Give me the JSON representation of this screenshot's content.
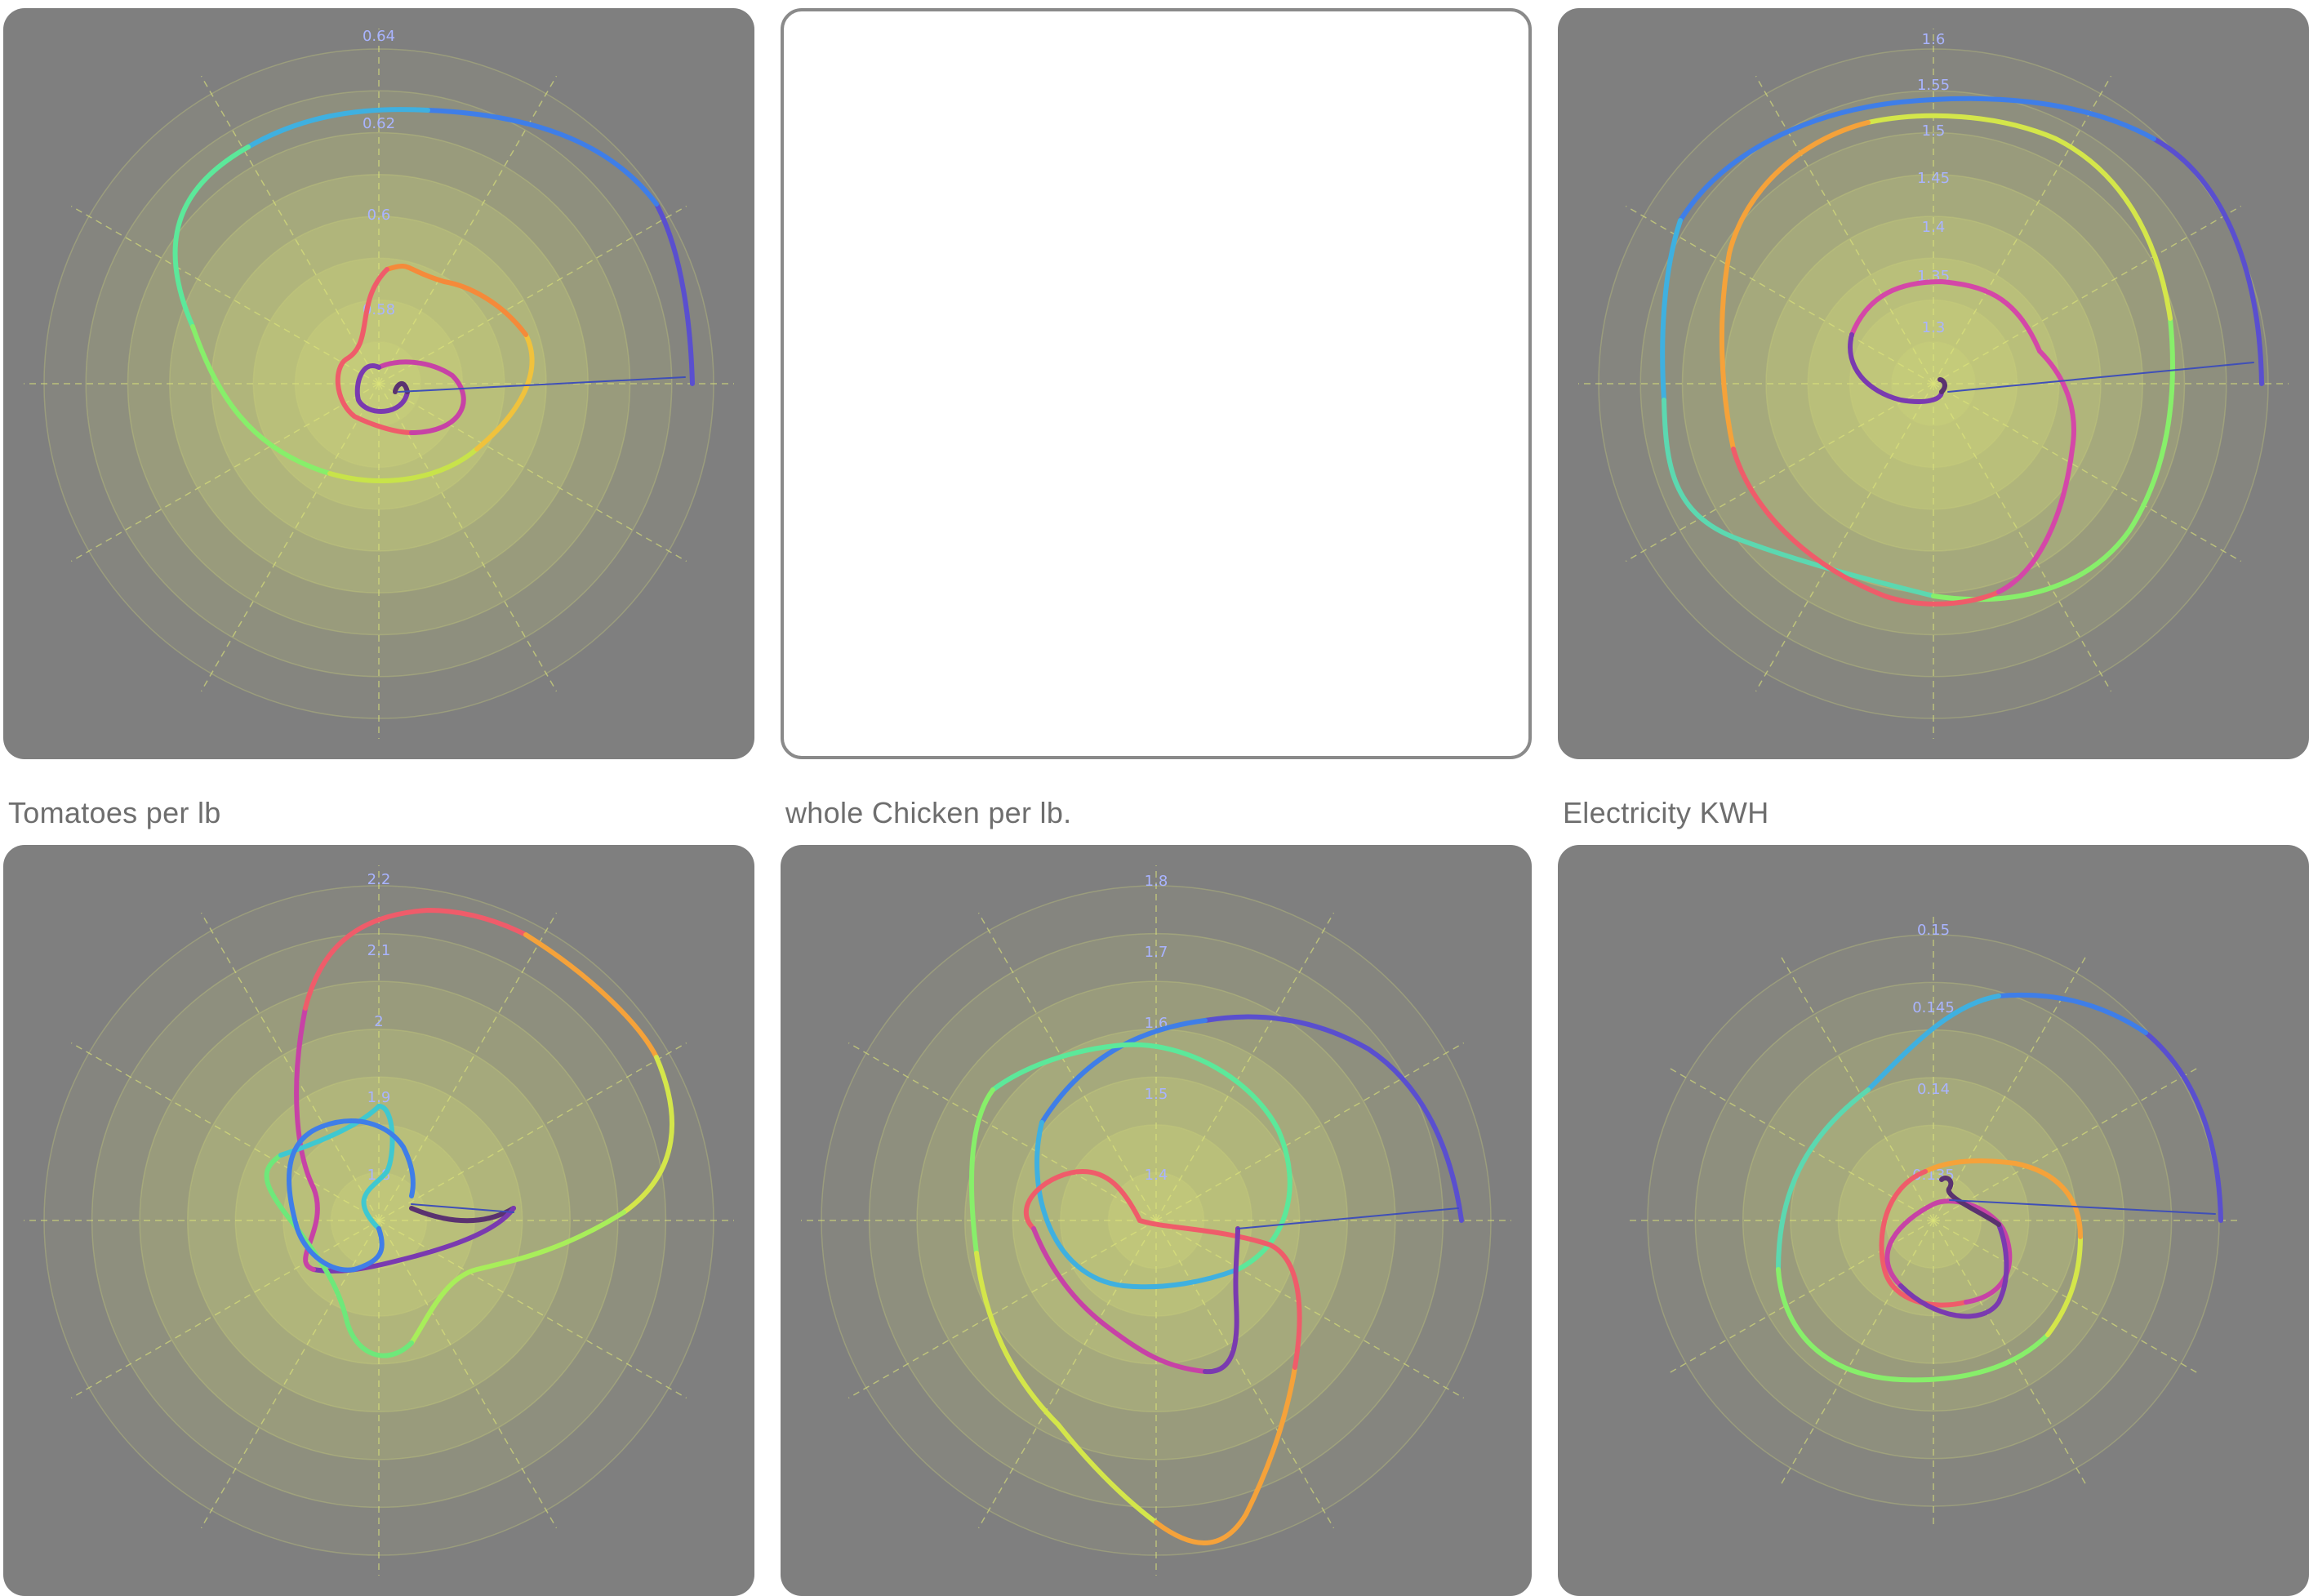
{
  "grid": {
    "ring_color": "#c8cf7a",
    "spoke_color": "#e0e77a",
    "background_color": "#7f7f7f",
    "tick_label_color": "#a9b4ff"
  },
  "cards": [
    {
      "id": "card-1",
      "caption": "",
      "blank": false,
      "ticks": [
        "0.64",
        "0.62",
        "0.6",
        "0.58"
      ]
    },
    {
      "id": "card-2",
      "caption": "",
      "blank": true,
      "ticks": []
    },
    {
      "id": "card-3",
      "caption": "",
      "blank": false,
      "ticks": [
        "1.6",
        "1.55",
        "1.5",
        "1.45",
        "1.4",
        "1.35",
        "1.3"
      ]
    },
    {
      "id": "card-4",
      "caption": "Tomatoes per lb",
      "blank": false,
      "ticks": [
        "2.2",
        "2.1",
        "2",
        "1.9",
        "1.8"
      ]
    },
    {
      "id": "card-5",
      "caption": "whole Chicken per lb.",
      "blank": false,
      "ticks": [
        "1.8",
        "1.7",
        "1.6",
        "1.5",
        "1.4"
      ]
    },
    {
      "id": "card-6",
      "caption": "Electricity KWH",
      "blank": false,
      "ticks": [
        "0.15",
        "0.145",
        "0.14",
        "0.135"
      ]
    }
  ]
}
